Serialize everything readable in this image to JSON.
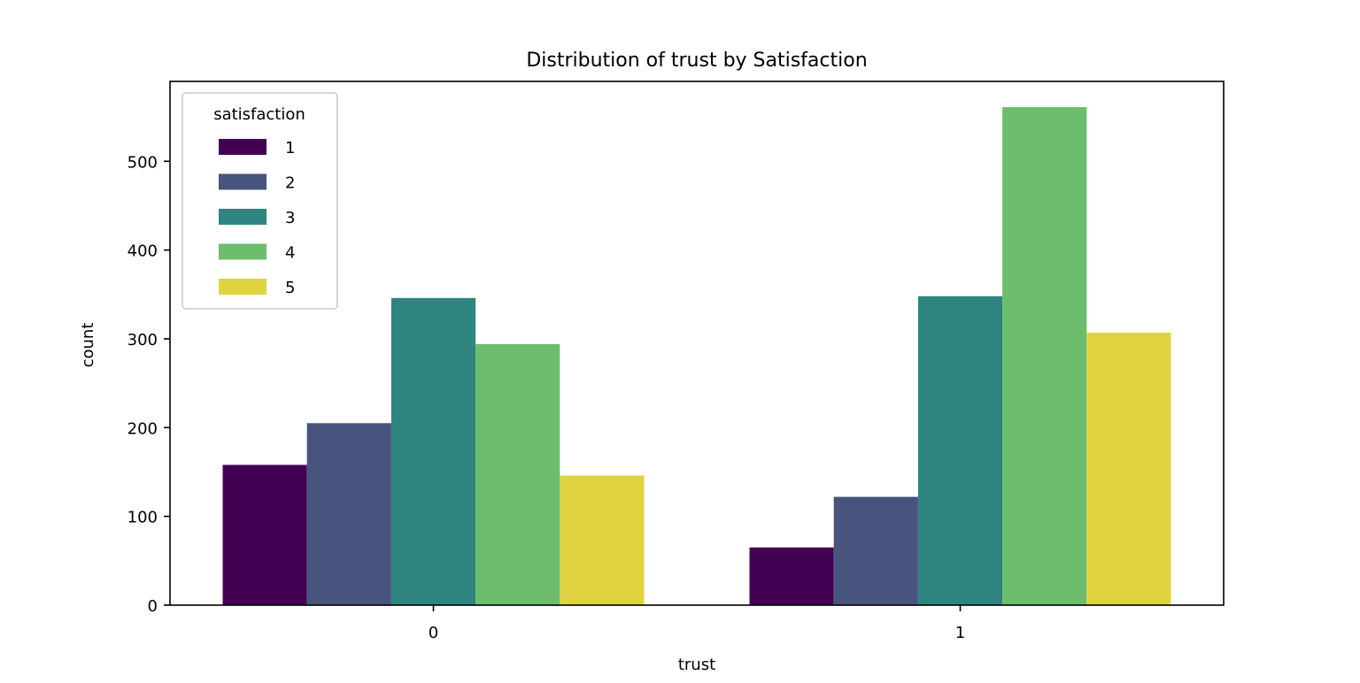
{
  "chart_data": {
    "type": "bar",
    "title": "Distribution of trust by Satisfaction",
    "xlabel": "trust",
    "ylabel": "count",
    "categories": [
      "0",
      "1"
    ],
    "ylim": [
      0,
      590
    ],
    "yticks": [
      0,
      100,
      200,
      300,
      400,
      500
    ],
    "grid": false,
    "legend": {
      "title": "satisfaction",
      "placement": "top-left"
    },
    "series": [
      {
        "name": "1",
        "color": "#440154",
        "values": [
          158,
          65
        ]
      },
      {
        "name": "2",
        "color": "#46547e",
        "values": [
          205,
          122
        ]
      },
      {
        "name": "3",
        "color": "#2e847e",
        "values": [
          346,
          348
        ]
      },
      {
        "name": "4",
        "color": "#6cbd6c",
        "values": [
          294,
          561
        ]
      },
      {
        "name": "5",
        "color": "#e1d340",
        "values": [
          146,
          307
        ]
      }
    ]
  }
}
